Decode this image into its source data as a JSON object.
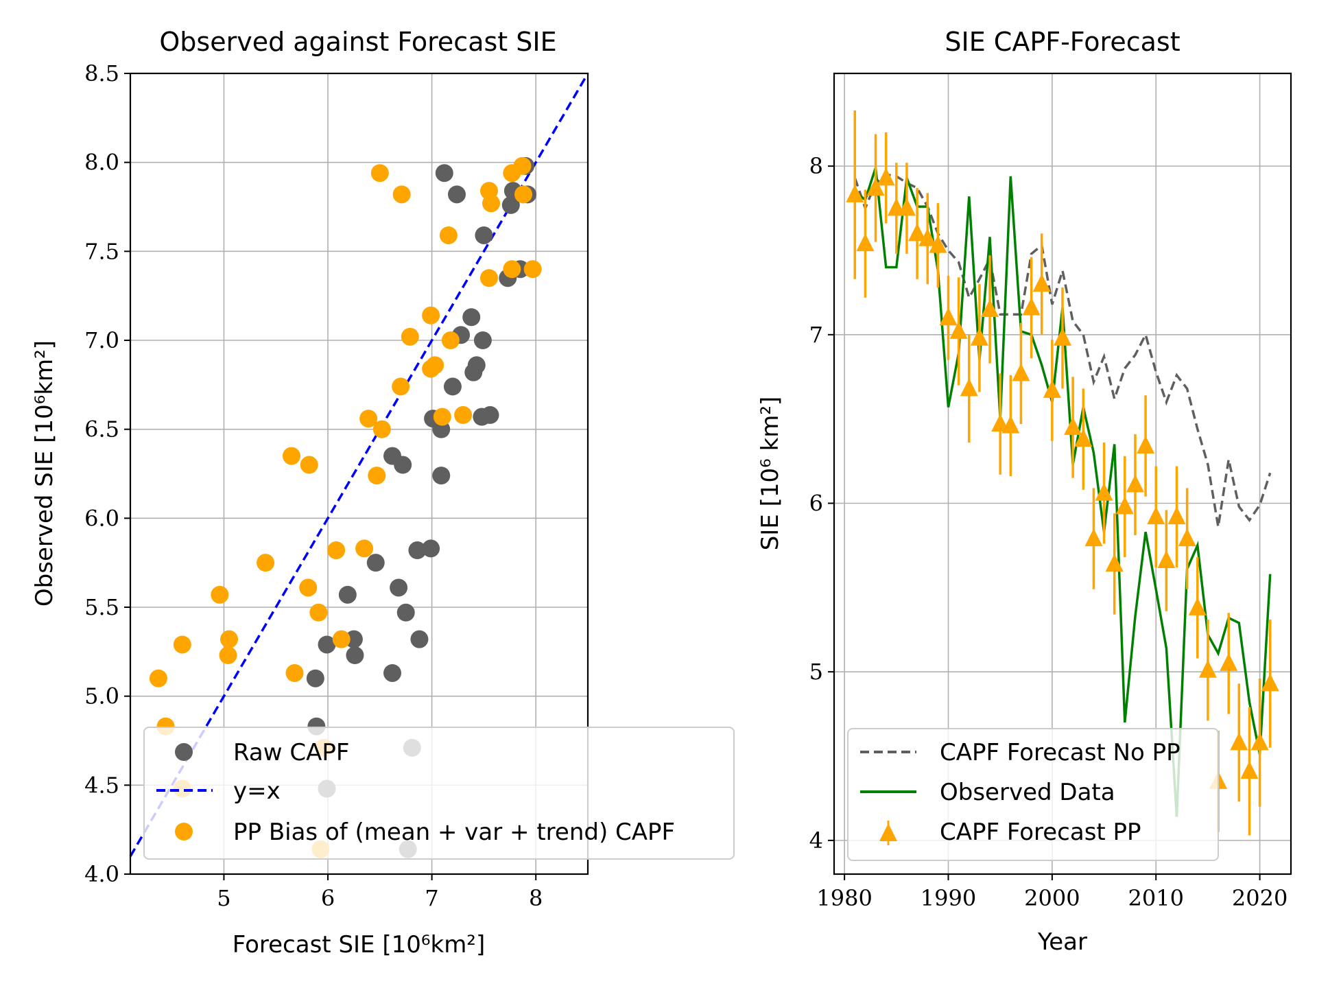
{
  "chart_data": [
    {
      "type": "scatter",
      "title": "Observed against Forecast SIE",
      "xlabel": "Forecast SIE [10⁶km²]",
      "ylabel": "Observed SIE [10⁶km²]",
      "xlim": [
        4.1,
        8.5
      ],
      "ylim": [
        4.0,
        8.5
      ],
      "xticks": [
        "5",
        "6",
        "7",
        "8"
      ],
      "yticks": [
        "4.0",
        "4.5",
        "5.0",
        "5.5",
        "6.0",
        "6.5",
        "7.0",
        "7.5",
        "8.0",
        "8.5"
      ],
      "grid": true,
      "legend_position": "lower-right",
      "series": [
        {
          "name": "Raw CAPF",
          "color": "#5f5f5f",
          "marker": "circle",
          "points": [
            [
              7.12,
              7.94
            ],
            [
              7.24,
              7.82
            ],
            [
              7.9,
              7.98
            ],
            [
              7.78,
              7.84
            ],
            [
              7.92,
              7.82
            ],
            [
              7.76,
              7.76
            ],
            [
              7.5,
              7.59
            ],
            [
              7.85,
              7.4
            ],
            [
              7.73,
              7.35
            ],
            [
              7.38,
              7.13
            ],
            [
              7.28,
              7.03
            ],
            [
              7.49,
              7.0
            ],
            [
              7.43,
              6.86
            ],
            [
              7.4,
              6.82
            ],
            [
              7.2,
              6.74
            ],
            [
              7.01,
              6.56
            ],
            [
              7.09,
              6.5
            ],
            [
              7.48,
              6.57
            ],
            [
              7.56,
              6.58
            ],
            [
              6.62,
              6.35
            ],
            [
              6.72,
              6.3
            ],
            [
              7.09,
              6.24
            ],
            [
              6.86,
              5.82
            ],
            [
              6.99,
              5.83
            ],
            [
              6.46,
              5.75
            ],
            [
              6.68,
              5.61
            ],
            [
              6.75,
              5.47
            ],
            [
              6.19,
              5.57
            ],
            [
              5.99,
              5.29
            ],
            [
              6.25,
              5.32
            ],
            [
              6.26,
              5.23
            ],
            [
              5.88,
              5.1
            ],
            [
              6.62,
              5.13
            ],
            [
              6.88,
              5.32
            ],
            [
              5.89,
              4.83
            ],
            [
              6.81,
              4.71
            ],
            [
              5.99,
              4.48
            ],
            [
              6.77,
              4.14
            ]
          ]
        },
        {
          "name": "PP Bias of (mean + var + trend) CAPF",
          "color": "#ffa500",
          "marker": "circle",
          "points": [
            [
              6.5,
              7.94
            ],
            [
              6.71,
              7.82
            ],
            [
              7.87,
              7.98
            ],
            [
              7.55,
              7.84
            ],
            [
              7.88,
              7.82
            ],
            [
              7.57,
              7.77
            ],
            [
              7.77,
              7.94
            ],
            [
              7.16,
              7.59
            ],
            [
              7.97,
              7.4
            ],
            [
              7.77,
              7.4
            ],
            [
              7.55,
              7.35
            ],
            [
              6.99,
              7.14
            ],
            [
              6.79,
              7.02
            ],
            [
              7.18,
              7.0
            ],
            [
              7.03,
              6.86
            ],
            [
              6.99,
              6.84
            ],
            [
              6.7,
              6.74
            ],
            [
              6.39,
              6.56
            ],
            [
              6.52,
              6.5
            ],
            [
              7.1,
              6.57
            ],
            [
              7.3,
              6.58
            ],
            [
              5.65,
              6.35
            ],
            [
              5.82,
              6.3
            ],
            [
              6.47,
              6.24
            ],
            [
              6.08,
              5.82
            ],
            [
              6.35,
              5.83
            ],
            [
              5.4,
              5.75
            ],
            [
              5.81,
              5.61
            ],
            [
              5.91,
              5.47
            ],
            [
              4.96,
              5.57
            ],
            [
              5.05,
              5.32
            ],
            [
              6.13,
              5.32
            ],
            [
              4.6,
              5.29
            ],
            [
              5.04,
              5.23
            ],
            [
              5.68,
              5.13
            ],
            [
              4.37,
              5.1
            ],
            [
              4.44,
              4.83
            ],
            [
              5.96,
              4.71
            ],
            [
              4.6,
              4.48
            ],
            [
              5.93,
              4.14
            ]
          ]
        }
      ],
      "reference_line": {
        "name": "y=x",
        "color": "#0000ff",
        "style": "dashed",
        "x": [
          4.1,
          8.5
        ],
        "y": [
          4.1,
          8.5
        ]
      }
    },
    {
      "type": "line",
      "title": "SIE CAPF-Forecast",
      "xlabel": "Year",
      "ylabel": "SIE [10⁶ km²]",
      "xlim": [
        1979,
        2023
      ],
      "ylim": [
        3.8,
        8.55
      ],
      "xticks": [
        "1980",
        "1990",
        "2000",
        "2010",
        "2020"
      ],
      "yticks": [
        "4",
        "5",
        "6",
        "7",
        "8"
      ],
      "grid": true,
      "legend_position": "lower-left",
      "years": [
        1981,
        1982,
        1983,
        1984,
        1985,
        1986,
        1987,
        1988,
        1989,
        1990,
        1991,
        1992,
        1993,
        1994,
        1995,
        1996,
        1997,
        1998,
        1999,
        2000,
        2001,
        2002,
        2003,
        2004,
        2005,
        2006,
        2007,
        2008,
        2009,
        2010,
        2011,
        2012,
        2013,
        2014,
        2015,
        2016,
        2017,
        2018,
        2019,
        2020,
        2021
      ],
      "series": [
        {
          "name": "CAPF Forecast No PP",
          "color": "#5f5f5f",
          "style": "dashed",
          "values": [
            7.93,
            7.75,
            7.9,
            7.95,
            7.94,
            7.9,
            7.87,
            7.76,
            7.6,
            7.5,
            7.43,
            7.22,
            7.33,
            7.45,
            7.12,
            7.12,
            7.12,
            7.48,
            7.53,
            7.18,
            7.38,
            7.08,
            7.0,
            6.72,
            6.87,
            6.62,
            6.8,
            6.88,
            7.0,
            6.78,
            6.6,
            6.76,
            6.68,
            6.44,
            6.23,
            5.86,
            6.26,
            5.98,
            5.9,
            5.99,
            6.18
          ]
        },
        {
          "name": "Observed Data",
          "color": "#008000",
          "style": "solid",
          "values": [
            7.85,
            7.8,
            7.99,
            7.4,
            7.4,
            7.93,
            7.76,
            7.76,
            7.38,
            6.57,
            6.89,
            7.82,
            6.85,
            7.58,
            6.5,
            7.94,
            7.02,
            7.0,
            6.82,
            6.6,
            7.16,
            6.23,
            6.57,
            6.3,
            5.83,
            6.35,
            4.7,
            5.33,
            5.83,
            5.49,
            5.14,
            4.14,
            5.61,
            5.75,
            5.22,
            5.11,
            5.32,
            5.29,
            4.82,
            4.51,
            5.58
          ]
        },
        {
          "name": "CAPF Forecast PP",
          "color": "#ffa500",
          "marker": "triangle-up",
          "values": [
            7.83,
            7.54,
            7.87,
            7.93,
            7.75,
            7.75,
            7.6,
            7.57,
            7.53,
            7.1,
            7.02,
            6.68,
            6.98,
            7.15,
            6.47,
            6.46,
            6.77,
            7.16,
            7.3,
            6.67,
            6.98,
            6.45,
            6.38,
            5.79,
            6.06,
            5.64,
            5.98,
            6.11,
            6.34,
            5.92,
            5.66,
            5.92,
            5.79,
            5.38,
            5.01,
            4.35,
            5.05,
            4.58,
            4.41,
            4.58,
            4.93
          ],
          "error": [
            0.5,
            0.32,
            0.32,
            0.27,
            0.27,
            0.27,
            0.27,
            0.27,
            0.25,
            0.25,
            0.32,
            0.32,
            0.32,
            0.32,
            0.3,
            0.3,
            0.3,
            0.3,
            0.3,
            0.3,
            0.3,
            0.3,
            0.3,
            0.3,
            0.3,
            0.3,
            0.3,
            0.3,
            0.3,
            0.3,
            0.3,
            0.3,
            0.3,
            0.3,
            0.3,
            0.3,
            0.3,
            0.35,
            0.38,
            0.38,
            0.38
          ]
        }
      ]
    }
  ]
}
